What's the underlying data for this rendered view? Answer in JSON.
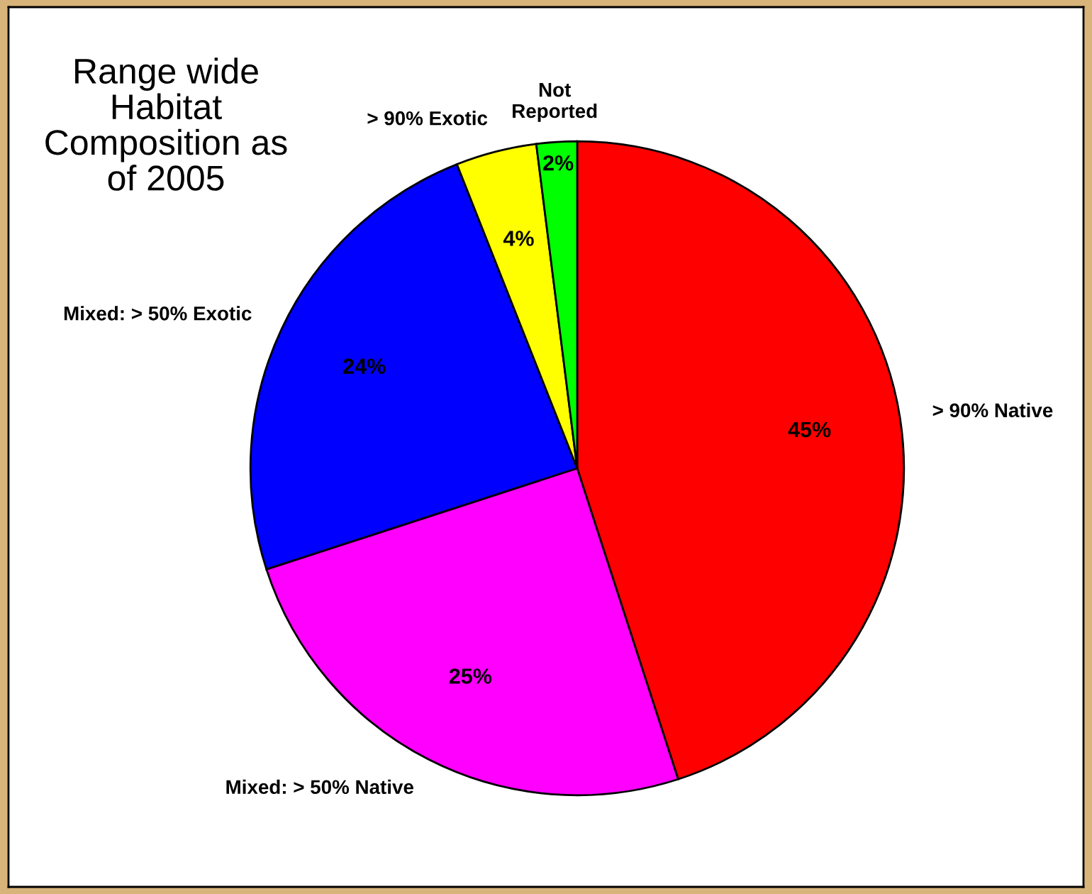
{
  "chart_data": {
    "type": "pie",
    "title": "Range wide\nHabitat\nComposition as\nof 2005",
    "categories": [
      "> 90% Native",
      "Mixed: > 50% Native",
      "Mixed: > 50% Exotic",
      "> 90% Exotic",
      "Not\nReported"
    ],
    "values": [
      45,
      25,
      24,
      4,
      2
    ],
    "value_labels": [
      "45%",
      "25%",
      "24%",
      "4%",
      "2%"
    ],
    "colors": [
      "#ff0000",
      "#ff00ff",
      "#0000ff",
      "#ffff00",
      "#00ff00"
    ],
    "legend": false
  }
}
